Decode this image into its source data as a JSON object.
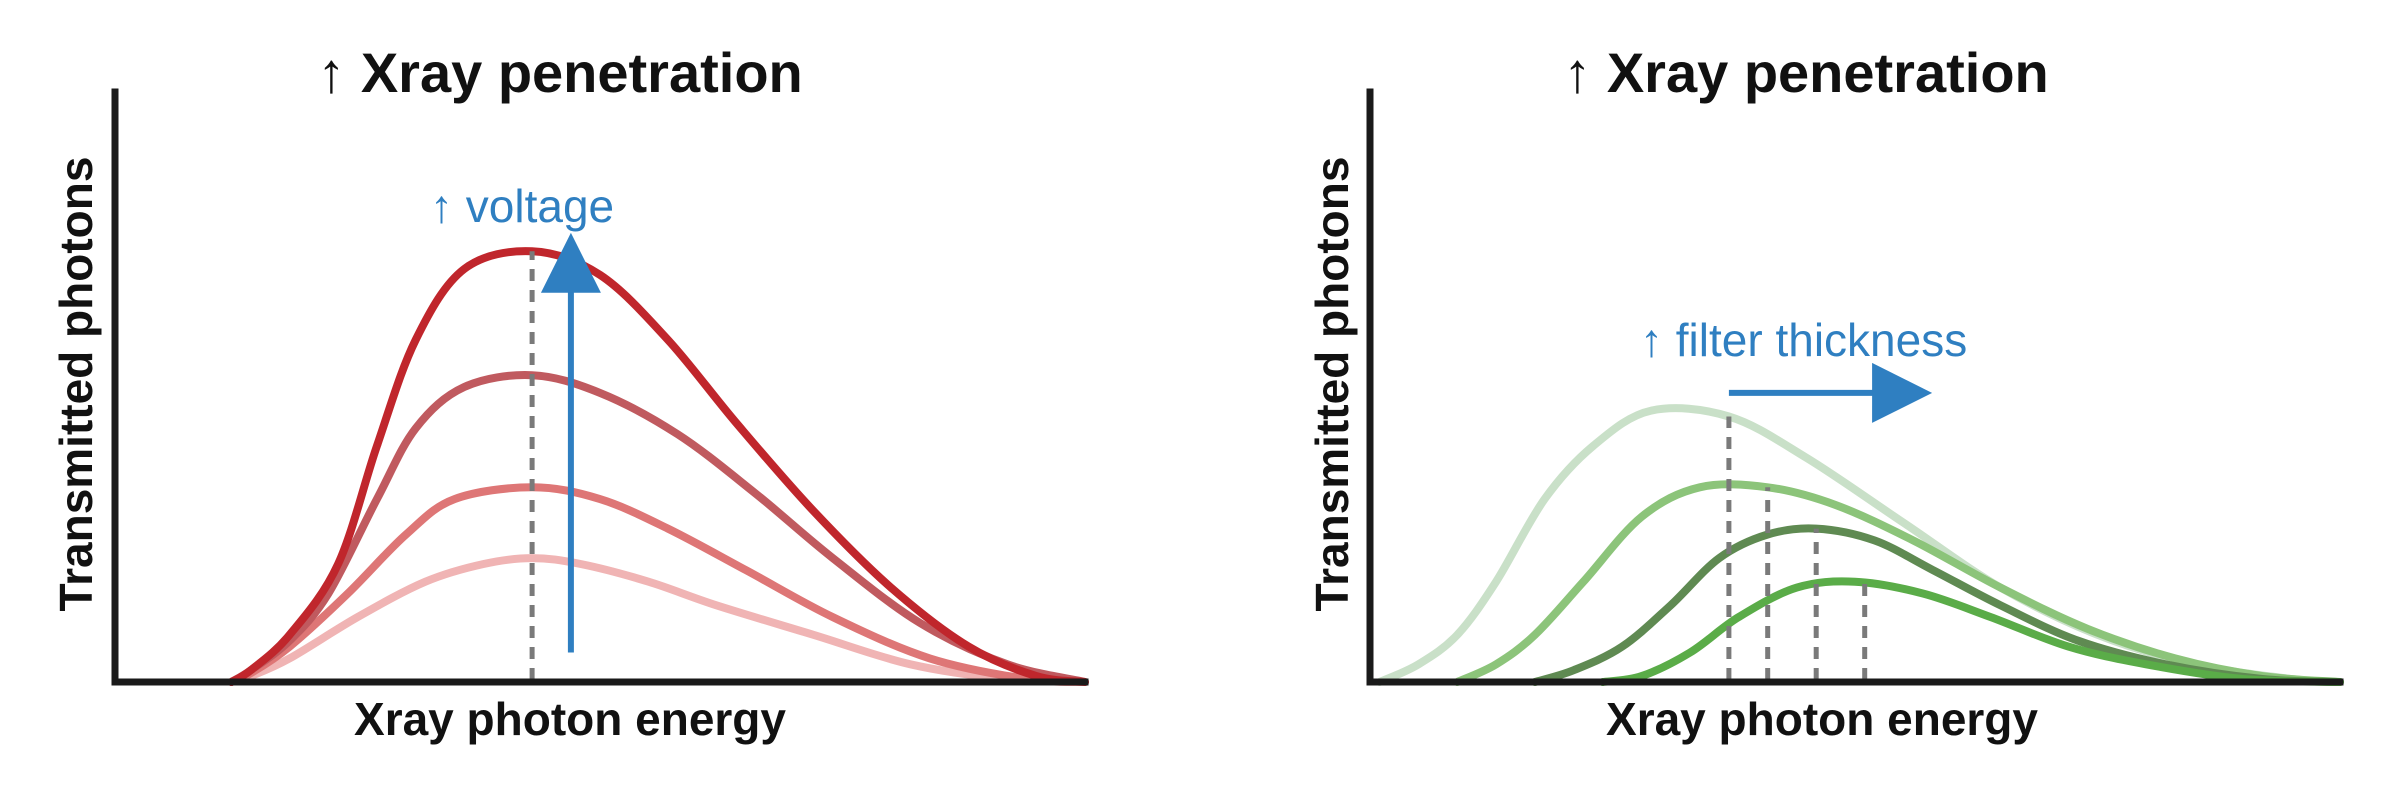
{
  "colors": {
    "axis": "#1a1a1a",
    "annotation": "#2f7fc1",
    "guide": "#7a7a7a"
  },
  "chart_data": [
    {
      "type": "line",
      "title": "↑ Xray penetration",
      "xlabel": "Xray photon energy",
      "ylabel": "Transmitted photons",
      "annotation": {
        "text": "↑ voltage",
        "direction": "up",
        "color": "#2f7fc1"
      },
      "grid": false,
      "legend": "none",
      "xlim": [
        0,
        100
      ],
      "ylim": [
        0,
        100
      ],
      "series": [
        {
          "color": "#f0b4b4",
          "points": [
            [
              12,
              0
            ],
            [
              14,
              1
            ],
            [
              18,
              4
            ],
            [
              25,
              11
            ],
            [
              32,
              17
            ],
            [
              38,
              20
            ],
            [
              43,
              21
            ],
            [
              48,
              20
            ],
            [
              55,
              17
            ],
            [
              62,
              13
            ],
            [
              72,
              8
            ],
            [
              82,
              3
            ],
            [
              92,
              0.5
            ],
            [
              100,
              0
            ]
          ]
        },
        {
          "color": "#de7676",
          "points": [
            [
              12,
              0
            ],
            [
              14,
              1.5
            ],
            [
              18,
              6
            ],
            [
              24,
              15
            ],
            [
              30,
              25
            ],
            [
              35,
              31
            ],
            [
              43,
              33
            ],
            [
              50,
              31
            ],
            [
              57,
              26
            ],
            [
              65,
              19
            ],
            [
              74,
              11
            ],
            [
              84,
              4
            ],
            [
              94,
              0.5
            ],
            [
              100,
              0
            ]
          ]
        },
        {
          "color": "#c05a5f",
          "points": [
            [
              12,
              0
            ],
            [
              14,
              2
            ],
            [
              18,
              7
            ],
            [
              22,
              15
            ],
            [
              27,
              31
            ],
            [
              31,
              43
            ],
            [
              36,
              50
            ],
            [
              43,
              52
            ],
            [
              50,
              49
            ],
            [
              58,
              42
            ],
            [
              66,
              32
            ],
            [
              74,
              21
            ],
            [
              83,
              10
            ],
            [
              92,
              3
            ],
            [
              100,
              0
            ]
          ]
        },
        {
          "color": "#c0262c",
          "points": [
            [
              12,
              0
            ],
            [
              14,
              2
            ],
            [
              18,
              8
            ],
            [
              23,
              20
            ],
            [
              27,
              40
            ],
            [
              31,
              58
            ],
            [
              36,
              70
            ],
            [
              43,
              73
            ],
            [
              50,
              69
            ],
            [
              57,
              58
            ],
            [
              64,
              44
            ],
            [
              72,
              29
            ],
            [
              80,
              16
            ],
            [
              88,
              6
            ],
            [
              95,
              1
            ],
            [
              100,
              0
            ]
          ]
        }
      ],
      "peak_lines_x": [
        43
      ],
      "arrow": {
        "x": 47,
        "y_from": 5,
        "y_to": 68
      }
    },
    {
      "type": "line",
      "title": "↑ Xray penetration",
      "xlabel": "Xray photon energy",
      "ylabel": "Transmitted photons",
      "annotation": {
        "text": "↑ filter thickness",
        "direction": "right",
        "color": "#2f7fc1"
      },
      "grid": false,
      "legend": "none",
      "xlim": [
        0,
        100
      ],
      "ylim": [
        0,
        100
      ],
      "series": [
        {
          "color": "#c9e0c8",
          "points": [
            [
              1,
              0
            ],
            [
              5,
              3
            ],
            [
              9,
              8
            ],
            [
              13,
              17
            ],
            [
              18,
              31
            ],
            [
              23,
              40
            ],
            [
              29,
              46
            ],
            [
              37,
              45
            ],
            [
              45,
              38
            ],
            [
              55,
              27
            ],
            [
              65,
              16
            ],
            [
              75,
              8
            ],
            [
              85,
              3
            ],
            [
              95,
              0.5
            ],
            [
              100,
              0
            ]
          ]
        },
        {
          "color": "#8cc47a",
          "points": [
            [
              9,
              0
            ],
            [
              13,
              3
            ],
            [
              17,
              8
            ],
            [
              22,
              17
            ],
            [
              28,
              28
            ],
            [
              34,
              33
            ],
            [
              41,
              33
            ],
            [
              48,
              30
            ],
            [
              56,
              24
            ],
            [
              65,
              16
            ],
            [
              74,
              9
            ],
            [
              83,
              4
            ],
            [
              92,
              1
            ],
            [
              100,
              0
            ]
          ]
        },
        {
          "color": "#5f8a52",
          "points": [
            [
              17,
              0
            ],
            [
              21,
              2
            ],
            [
              26,
              6
            ],
            [
              31,
              13
            ],
            [
              36,
              21
            ],
            [
              41,
              25
            ],
            [
              46,
              26
            ],
            [
              52,
              24
            ],
            [
              58,
              19
            ],
            [
              65,
              13
            ],
            [
              73,
              7
            ],
            [
              82,
              3
            ],
            [
              92,
              0.5
            ],
            [
              100,
              0
            ]
          ]
        },
        {
          "color": "#5aac48",
          "points": [
            [
              24,
              0
            ],
            [
              28,
              1
            ],
            [
              33,
              5
            ],
            [
              38,
              11
            ],
            [
              44,
              16
            ],
            [
              50,
              17
            ],
            [
              57,
              15
            ],
            [
              64,
              11
            ],
            [
              72,
              6
            ],
            [
              80,
              3
            ],
            [
              90,
              0.5
            ],
            [
              100,
              0
            ]
          ]
        }
      ],
      "peak_lines_x": [
        37,
        41,
        46,
        51
      ],
      "arrow": {
        "y": 49,
        "x_from": 37,
        "x_to": 53
      }
    }
  ]
}
